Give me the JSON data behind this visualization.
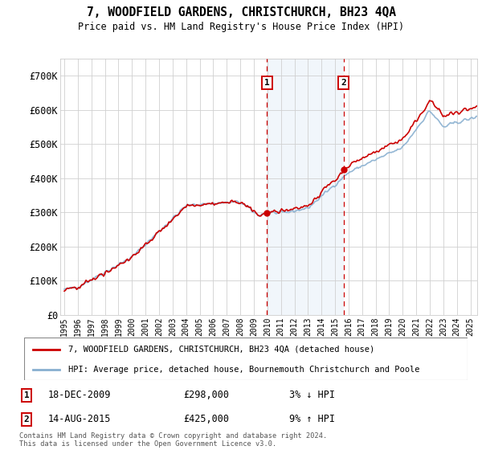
{
  "title": "7, WOODFIELD GARDENS, CHRISTCHURCH, BH23 4QA",
  "subtitle": "Price paid vs. HM Land Registry's House Price Index (HPI)",
  "legend_line1": "7, WOODFIELD GARDENS, CHRISTCHURCH, BH23 4QA (detached house)",
  "legend_line2": "HPI: Average price, detached house, Bournemouth Christchurch and Poole",
  "annotation1": {
    "num": "1",
    "date": "18-DEC-2009",
    "price": "£298,000",
    "pct": "3% ↓ HPI",
    "x_year": 2009.96
  },
  "annotation2": {
    "num": "2",
    "date": "14-AUG-2015",
    "price": "£425,000",
    "pct": "9% ↑ HPI",
    "x_year": 2015.62
  },
  "footnote": "Contains HM Land Registry data © Crown copyright and database right 2024.\nThis data is licensed under the Open Government Licence v3.0.",
  "price_color": "#cc0000",
  "hpi_color": "#88afd0",
  "shading_color": "#d8e8f5",
  "ylim": [
    0,
    750000
  ],
  "yticks": [
    0,
    100000,
    200000,
    300000,
    400000,
    500000,
    600000,
    700000
  ],
  "ytick_labels": [
    "£0",
    "£100K",
    "£200K",
    "£300K",
    "£400K",
    "£500K",
    "£600K",
    "£700K"
  ],
  "xlim_start": 1994.7,
  "xlim_end": 2025.5,
  "xticks": [
    1995,
    1996,
    1997,
    1998,
    1999,
    2000,
    2001,
    2002,
    2003,
    2004,
    2005,
    2006,
    2007,
    2008,
    2009,
    2010,
    2011,
    2012,
    2013,
    2014,
    2015,
    2016,
    2017,
    2018,
    2019,
    2020,
    2021,
    2022,
    2023,
    2024,
    2025
  ]
}
